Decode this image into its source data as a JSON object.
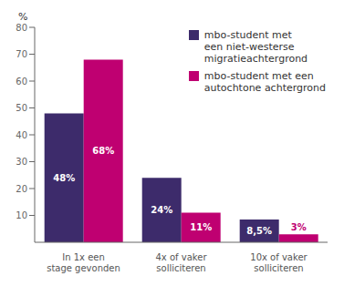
{
  "chart_data": {
    "type": "bar",
    "categories": [
      "In 1x een\nstage gevonden",
      "4x of vaker\nsolliciteren",
      "10x of vaker\nsolliciteren"
    ],
    "ylabel": "%",
    "series": [
      {
        "name": "mbo-student met\neen niet-westerse\nmigratieachtergrond",
        "color": "#3d2b6b",
        "values": [
          48,
          24,
          8.5
        ],
        "value_labels": [
          "48%",
          "24%",
          "8,5%"
        ]
      },
      {
        "name": "mbo-student met een\nautochtone achtergrond",
        "color": "#bf0071",
        "values": [
          68,
          11,
          3
        ],
        "value_labels": [
          "68%",
          "11%",
          "3%"
        ]
      }
    ],
    "ylim": [
      0,
      80
    ],
    "yticks": [
      10,
      20,
      30,
      40,
      50,
      60,
      70,
      80
    ],
    "grid": false,
    "legend": "upper right",
    "data_labels": true
  }
}
